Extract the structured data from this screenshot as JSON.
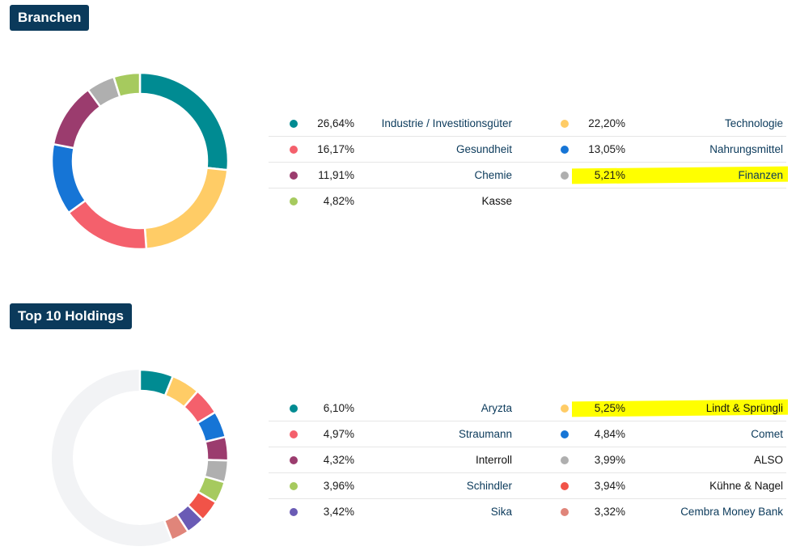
{
  "sections": {
    "branchen": {
      "title": "Branchen"
    },
    "holdings": {
      "title": "Top 10 Holdings"
    }
  },
  "chart_data": [
    {
      "type": "pie",
      "title": "Branchen",
      "items": [
        {
          "label": "Industrie / Investitionsgüter",
          "value": 26.64,
          "value_text": "26,64%",
          "color": "#008b92"
        },
        {
          "label": "Technologie",
          "value": 22.2,
          "value_text": "22,20%",
          "color": "#ffcc66"
        },
        {
          "label": "Gesundheit",
          "value": 16.17,
          "value_text": "16,17%",
          "color": "#f4606c"
        },
        {
          "label": "Nahrungsmittel",
          "value": 13.05,
          "value_text": "13,05%",
          "color": "#1675d6"
        },
        {
          "label": "Chemie",
          "value": 11.91,
          "value_text": "11,91%",
          "color": "#9b3c6e"
        },
        {
          "label": "Finanzen",
          "value": 5.21,
          "value_text": "5,21%",
          "color": "#afafaf",
          "highlighted": true
        },
        {
          "label": "Kasse",
          "value": 4.82,
          "value_text": "4,82%",
          "color": "#a6ca5e"
        }
      ]
    },
    {
      "type": "pie",
      "title": "Top 10 Holdings",
      "remainder_color": "#f2f3f5",
      "items": [
        {
          "label": "Aryzta",
          "value": 6.1,
          "value_text": "6,10%",
          "color": "#008b92"
        },
        {
          "label": "Lindt & Sprüngli",
          "value": 5.25,
          "value_text": "5,25%",
          "color": "#ffcc66",
          "highlighted": true
        },
        {
          "label": "Straumann",
          "value": 4.97,
          "value_text": "4,97%",
          "color": "#f4606c"
        },
        {
          "label": "Comet",
          "value": 4.84,
          "value_text": "4,84%",
          "color": "#1675d6"
        },
        {
          "label": "Interroll",
          "value": 4.32,
          "value_text": "4,32%",
          "color": "#9b3c6e"
        },
        {
          "label": "ALSO",
          "value": 3.99,
          "value_text": "3,99%",
          "color": "#afafaf"
        },
        {
          "label": "Schindler",
          "value": 3.96,
          "value_text": "3,96%",
          "color": "#a6ca5e"
        },
        {
          "label": "Kühne & Nagel",
          "value": 3.94,
          "value_text": "3,94%",
          "color": "#f15348"
        },
        {
          "label": "Sika",
          "value": 3.42,
          "value_text": "3,42%",
          "color": "#6a5bb5"
        },
        {
          "label": "Cembra Money Bank",
          "value": 3.32,
          "value_text": "3,32%",
          "color": "#e0857a"
        }
      ]
    }
  ]
}
